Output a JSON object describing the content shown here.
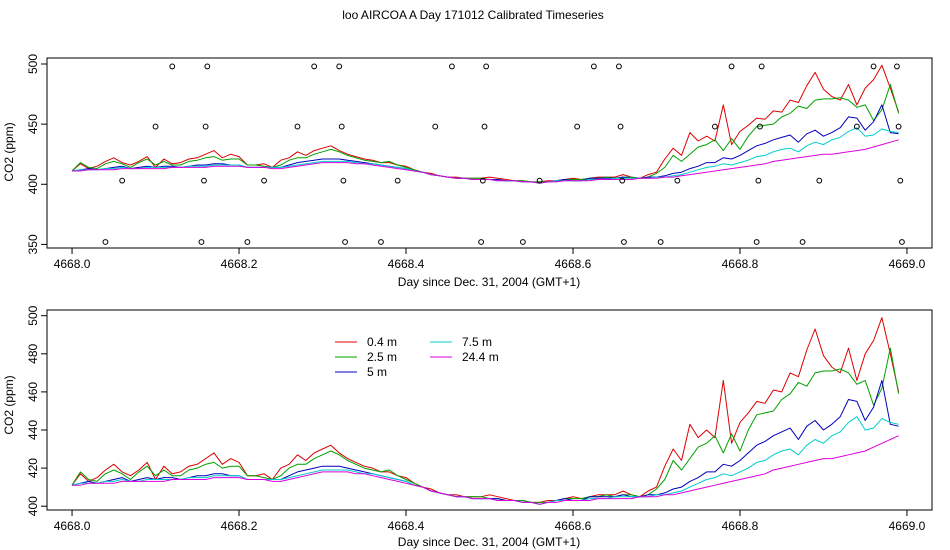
{
  "title": "loo AIRCOA A  Day 171012  Calibrated Timeseries",
  "colors": {
    "h0_4": "#dd0000",
    "h2_5": "#00a000",
    "h5": "#0000bb",
    "h7_5": "#00cccc",
    "h24_4": "#dd00dd"
  },
  "chart_data": [
    {
      "type": "line",
      "xlabel": "Day since Dec. 31, 2004 (GMT+1)",
      "ylabel": "CO2 (ppm)",
      "xlim": [
        4667.97,
        4669.03
      ],
      "ylim": [
        347,
        505
      ],
      "xticks": [
        4668.0,
        4668.2,
        4668.4,
        4668.6,
        4668.8,
        4669.0
      ],
      "xtick_labels": [
        "4668.0",
        "4668.2",
        "4668.4",
        "4668.6",
        "4668.8",
        "4669.0"
      ],
      "yticks": [
        350,
        400,
        450,
        500
      ],
      "ytick_labels": [
        "350",
        "400",
        "450",
        "500"
      ],
      "legend": null,
      "calibration_points": [
        {
          "x": 4668.04,
          "y": 352
        },
        {
          "x": 4668.06,
          "y": 403
        },
        {
          "x": 4668.1,
          "y": 448
        },
        {
          "x": 4668.12,
          "y": 498
        },
        {
          "x": 4668.155,
          "y": 352
        },
        {
          "x": 4668.158,
          "y": 403
        },
        {
          "x": 4668.16,
          "y": 448
        },
        {
          "x": 4668.162,
          "y": 498
        },
        {
          "x": 4668.21,
          "y": 352
        },
        {
          "x": 4668.23,
          "y": 403
        },
        {
          "x": 4668.27,
          "y": 448
        },
        {
          "x": 4668.29,
          "y": 498
        },
        {
          "x": 4668.32,
          "y": 498
        },
        {
          "x": 4668.323,
          "y": 448
        },
        {
          "x": 4668.325,
          "y": 403
        },
        {
          "x": 4668.327,
          "y": 352
        },
        {
          "x": 4668.37,
          "y": 352
        },
        {
          "x": 4668.39,
          "y": 403
        },
        {
          "x": 4668.435,
          "y": 448
        },
        {
          "x": 4668.455,
          "y": 498
        },
        {
          "x": 4668.49,
          "y": 352
        },
        {
          "x": 4668.492,
          "y": 403
        },
        {
          "x": 4668.494,
          "y": 448
        },
        {
          "x": 4668.496,
          "y": 498
        },
        {
          "x": 4668.54,
          "y": 352
        },
        {
          "x": 4668.56,
          "y": 403
        },
        {
          "x": 4668.605,
          "y": 448
        },
        {
          "x": 4668.625,
          "y": 498
        },
        {
          "x": 4668.655,
          "y": 498
        },
        {
          "x": 4668.657,
          "y": 448
        },
        {
          "x": 4668.659,
          "y": 403
        },
        {
          "x": 4668.661,
          "y": 352
        },
        {
          "x": 4668.705,
          "y": 352
        },
        {
          "x": 4668.725,
          "y": 403
        },
        {
          "x": 4668.77,
          "y": 448
        },
        {
          "x": 4668.79,
          "y": 498
        },
        {
          "x": 4668.82,
          "y": 352
        },
        {
          "x": 4668.822,
          "y": 403
        },
        {
          "x": 4668.824,
          "y": 448
        },
        {
          "x": 4668.826,
          "y": 498
        },
        {
          "x": 4668.875,
          "y": 352
        },
        {
          "x": 4668.895,
          "y": 403
        },
        {
          "x": 4668.94,
          "y": 448
        },
        {
          "x": 4668.96,
          "y": 498
        },
        {
          "x": 4668.988,
          "y": 498
        },
        {
          "x": 4668.99,
          "y": 448
        },
        {
          "x": 4668.992,
          "y": 403
        },
        {
          "x": 4668.994,
          "y": 352
        }
      ]
    },
    {
      "type": "line",
      "xlabel": "Day since Dec. 31, 2004 (GMT+1)",
      "ylabel": "CO2 (ppm)",
      "xlim": [
        4667.97,
        4669.03
      ],
      "ylim": [
        398,
        503
      ],
      "xticks": [
        4668.0,
        4668.2,
        4668.4,
        4668.6,
        4668.8,
        4669.0
      ],
      "xtick_labels": [
        "4668.0",
        "4668.2",
        "4668.4",
        "4668.6",
        "4668.8",
        "4669.0"
      ],
      "yticks": [
        400,
        420,
        440,
        460,
        480,
        500
      ],
      "ytick_labels": [
        "400",
        "420",
        "440",
        "460",
        "480",
        "500"
      ],
      "legend": [
        {
          "name": "0.4 m",
          "color": "#dd0000"
        },
        {
          "name": "7.5 m",
          "color": "#00cccc"
        },
        {
          "name": "2.5 m",
          "color": "#00a000"
        },
        {
          "name": "24.4 m",
          "color": "#dd00dd"
        },
        {
          "name": "5 m",
          "color": "#0000bb"
        }
      ]
    }
  ],
  "series_x": [
    4668.0,
    4668.01,
    4668.02,
    4668.03,
    4668.04,
    4668.05,
    4668.06,
    4668.07,
    4668.08,
    4668.09,
    4668.1,
    4668.11,
    4668.12,
    4668.13,
    4668.14,
    4668.15,
    4668.16,
    4668.17,
    4668.18,
    4668.19,
    4668.2,
    4668.21,
    4668.22,
    4668.23,
    4668.24,
    4668.25,
    4668.26,
    4668.27,
    4668.28,
    4668.29,
    4668.3,
    4668.31,
    4668.32,
    4668.33,
    4668.34,
    4668.35,
    4668.36,
    4668.37,
    4668.38,
    4668.39,
    4668.4,
    4668.41,
    4668.42,
    4668.43,
    4668.44,
    4668.45,
    4668.46,
    4668.47,
    4668.48,
    4668.49,
    4668.5,
    4668.51,
    4668.52,
    4668.53,
    4668.54,
    4668.55,
    4668.56,
    4668.57,
    4668.58,
    4668.59,
    4668.6,
    4668.61,
    4668.62,
    4668.63,
    4668.64,
    4668.65,
    4668.66,
    4668.67,
    4668.68,
    4668.69,
    4668.7,
    4668.71,
    4668.72,
    4668.73,
    4668.74,
    4668.75,
    4668.76,
    4668.77,
    4668.78,
    4668.79,
    4668.8,
    4668.81,
    4668.82,
    4668.83,
    4668.84,
    4668.85,
    4668.86,
    4668.87,
    4668.88,
    4668.89,
    4668.9,
    4668.91,
    4668.92,
    4668.93,
    4668.94,
    4668.95,
    4668.96,
    4668.97,
    4668.98,
    4668.99
  ],
  "series": [
    {
      "name": "0.4 m",
      "color": "#dd0000",
      "values": [
        411,
        417,
        413,
        415,
        419,
        422,
        418,
        416,
        419,
        423,
        414,
        421,
        417,
        418,
        421,
        422,
        425,
        428,
        422,
        425,
        423,
        416,
        416,
        417,
        414,
        420,
        422,
        427,
        424,
        428,
        430,
        432,
        428,
        425,
        423,
        421,
        420,
        418,
        418,
        416,
        415,
        412,
        410,
        409,
        407,
        406,
        406,
        405,
        405,
        405,
        406,
        405,
        404,
        403,
        403,
        402,
        402,
        403,
        403,
        404,
        405,
        404,
        405,
        406,
        406,
        406,
        408,
        406,
        405,
        408,
        410,
        421,
        430,
        424,
        443,
        436,
        440,
        436,
        466,
        433,
        444,
        449,
        455,
        454,
        461,
        460,
        470,
        468,
        482,
        493,
        479,
        473,
        470,
        483,
        466,
        480,
        487,
        499,
        480,
        460
      ]
    },
    {
      "name": "2.5 m",
      "color": "#00a000",
      "values": [
        411,
        418,
        414,
        413,
        417,
        419,
        417,
        414,
        418,
        421,
        416,
        419,
        416,
        416,
        419,
        420,
        422,
        423,
        420,
        421,
        421,
        416,
        416,
        415,
        414,
        416,
        420,
        422,
        422,
        425,
        427,
        429,
        427,
        424,
        422,
        420,
        419,
        418,
        419,
        416,
        414,
        412,
        410,
        408,
        407,
        406,
        405,
        405,
        405,
        405,
        404,
        404,
        403,
        403,
        403,
        402,
        402,
        402,
        403,
        404,
        404,
        404,
        405,
        405,
        406,
        405,
        406,
        406,
        405,
        406,
        409,
        414,
        424,
        419,
        425,
        431,
        433,
        437,
        428,
        438,
        429,
        440,
        448,
        449,
        450,
        456,
        459,
        465,
        463,
        470,
        471,
        471,
        472,
        470,
        464,
        466,
        453,
        462,
        483,
        459
      ]
    },
    {
      "name": "5 m",
      "color": "#0000bb",
      "values": [
        411,
        412,
        413,
        412,
        413,
        414,
        415,
        413,
        414,
        415,
        414,
        415,
        415,
        414,
        415,
        416,
        416,
        417,
        417,
        416,
        416,
        414,
        414,
        414,
        414,
        414,
        416,
        418,
        419,
        420,
        421,
        421,
        421,
        420,
        419,
        418,
        417,
        416,
        415,
        414,
        413,
        411,
        410,
        408,
        407,
        406,
        405,
        405,
        404,
        404,
        404,
        404,
        403,
        403,
        402,
        402,
        401,
        402,
        403,
        404,
        403,
        403,
        405,
        405,
        405,
        405,
        406,
        405,
        405,
        406,
        406,
        407,
        409,
        410,
        413,
        415,
        418,
        418,
        422,
        421,
        424,
        428,
        432,
        434,
        437,
        439,
        441,
        435,
        442,
        445,
        440,
        443,
        447,
        456,
        455,
        445,
        452,
        466,
        443,
        442
      ]
    },
    {
      "name": "7.5 m",
      "color": "#00cccc",
      "values": [
        411,
        412,
        412,
        412,
        413,
        413,
        414,
        413,
        413,
        414,
        414,
        414,
        414,
        414,
        415,
        415,
        415,
        416,
        416,
        416,
        416,
        414,
        414,
        414,
        414,
        414,
        415,
        416,
        417,
        418,
        419,
        419,
        419,
        419,
        418,
        417,
        417,
        416,
        415,
        414,
        413,
        411,
        410,
        408,
        407,
        406,
        405,
        405,
        404,
        404,
        404,
        403,
        403,
        403,
        402,
        402,
        401,
        402,
        403,
        403,
        403,
        403,
        404,
        404,
        404,
        405,
        405,
        405,
        405,
        405,
        406,
        406,
        407,
        408,
        410,
        412,
        414,
        415,
        417,
        416,
        418,
        420,
        423,
        424,
        427,
        429,
        430,
        427,
        432,
        435,
        433,
        437,
        439,
        444,
        447,
        440,
        441,
        446,
        444,
        443
      ]
    },
    {
      "name": "24.4 m",
      "color": "#dd00dd",
      "values": [
        411,
        411,
        412,
        412,
        412,
        412,
        413,
        413,
        413,
        413,
        413,
        413,
        414,
        414,
        414,
        414,
        414,
        415,
        415,
        415,
        415,
        414,
        414,
        414,
        413,
        413,
        414,
        415,
        416,
        417,
        418,
        418,
        418,
        418,
        417,
        417,
        416,
        415,
        414,
        413,
        412,
        411,
        410,
        408,
        407,
        406,
        405,
        405,
        404,
        404,
        404,
        403,
        403,
        403,
        402,
        402,
        401,
        402,
        402,
        403,
        403,
        403,
        403,
        404,
        404,
        404,
        404,
        404,
        405,
        405,
        405,
        406,
        406,
        407,
        408,
        409,
        410,
        411,
        412,
        413,
        414,
        415,
        416,
        417,
        419,
        420,
        421,
        422,
        423,
        424,
        425,
        425,
        426,
        427,
        428,
        429,
        431,
        433,
        435,
        437
      ]
    }
  ]
}
